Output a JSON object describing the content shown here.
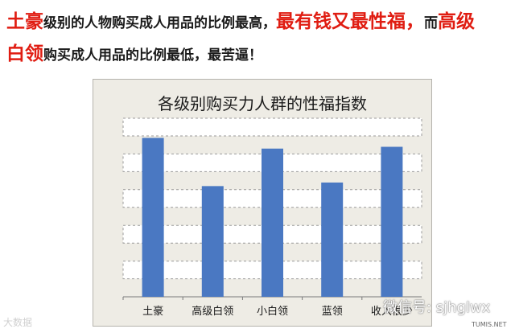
{
  "headline": {
    "p1": "土豪",
    "p2": "级别的人物购买成人用品的比例最高，",
    "p3": "最有钱又最性福",
    "p4": "，",
    "p5": "而",
    "p6": "高级",
    "p7": "白领",
    "p8": "购买成人用品的比例最低，最苦逼！"
  },
  "colors": {
    "accent_red": "#e01d12",
    "bar": "#4a78c2",
    "chart_bg": "#eeece5"
  },
  "chart_data": {
    "type": "bar",
    "title": "各级别购买力人群的性福指数",
    "categories": [
      "土豪",
      "高级白领",
      "小白领",
      "蓝领",
      "收入很少"
    ],
    "values": [
      4.45,
      3.1,
      4.15,
      3.2,
      4.2
    ],
    "ylim": [
      0,
      5
    ],
    "grid": true,
    "gridlines": [
      1,
      2,
      3,
      4,
      5
    ],
    "xlabel": "",
    "ylabel": ""
  },
  "watermarks": {
    "left": "大数据",
    "right": "微信号: sjhglwx",
    "corner": "TUMIS.NET"
  }
}
